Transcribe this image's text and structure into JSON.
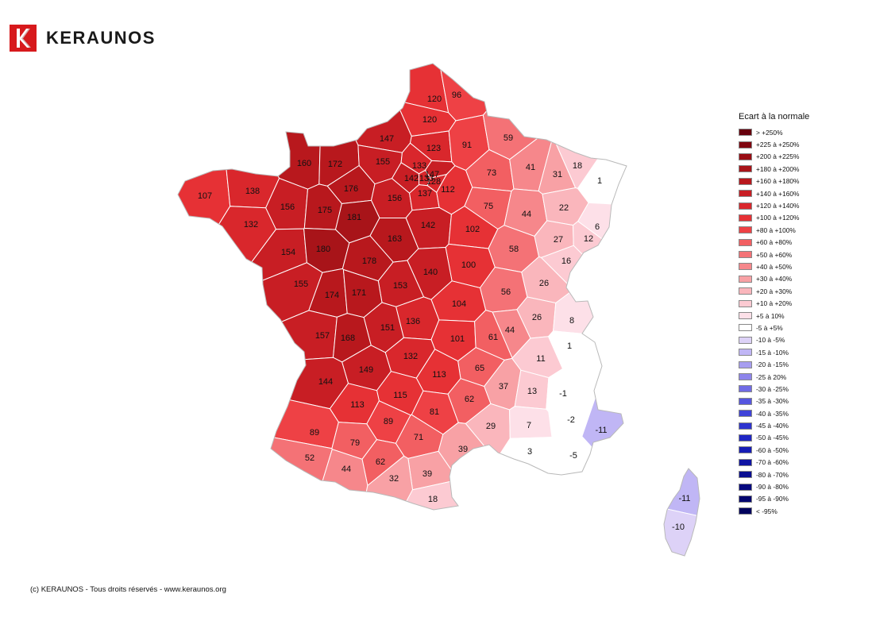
{
  "header": {
    "brand_name": "KERAUNOS",
    "logo_icon": "keraunos-logo-icon",
    "logo_color": "#d7191c"
  },
  "legend": {
    "title": "Ecart à la normale",
    "classes": [
      {
        "label": "> +250%",
        "color": "#67000d"
      },
      {
        "label": "+225 à +250%",
        "color": "#7f0610"
      },
      {
        "label": "+200 à +225%",
        "color": "#990d14"
      },
      {
        "label": "+180 à +200%",
        "color": "#a81419"
      },
      {
        "label": "+160 à +180%",
        "color": "#b8181d"
      },
      {
        "label": "+140 à +160%",
        "color": "#c81e24"
      },
      {
        "label": "+120 à +140%",
        "color": "#d9272c"
      },
      {
        "label": "+100 à +120%",
        "color": "#e63135"
      },
      {
        "label": "+80 à +100%",
        "color": "#ee4145"
      },
      {
        "label": "+60 à +80%",
        "color": "#f25f62"
      },
      {
        "label": "+50 à +60%",
        "color": "#f47276"
      },
      {
        "label": "+40 à +50%",
        "color": "#f6878b"
      },
      {
        "label": "+30 à +40%",
        "color": "#f8a1a5"
      },
      {
        "label": "+20 à +30%",
        "color": "#fab6bc"
      },
      {
        "label": "+10 à +20%",
        "color": "#fccad2"
      },
      {
        "label": "+5 à 10%",
        "color": "#fde0e8"
      },
      {
        "label": "-5 à +5%",
        "color": "#ffffff"
      },
      {
        "label": "-10 à -5%",
        "color": "#ddd2f7"
      },
      {
        "label": "-15 à -10%",
        "color": "#c0b6f5"
      },
      {
        "label": "-20 à -15%",
        "color": "#a79ef0"
      },
      {
        "label": "-25 à 20%",
        "color": "#8d84eb"
      },
      {
        "label": "-30 à -25%",
        "color": "#706be5"
      },
      {
        "label": "-35 à -30%",
        "color": "#5656df"
      },
      {
        "label": "-40 à -35%",
        "color": "#3f42d8"
      },
      {
        "label": "-45 à -40%",
        "color": "#2d33cf"
      },
      {
        "label": "-50 à -45%",
        "color": "#1f26c4"
      },
      {
        "label": "-60 à -50%",
        "color": "#161cb5"
      },
      {
        "label": "-70 à -60%",
        "color": "#0f14a3"
      },
      {
        "label": "-80 à -70%",
        "color": "#0a0e91"
      },
      {
        "label": "-90 à -80%",
        "color": "#06097f"
      },
      {
        "label": "-95 à -90%",
        "color": "#03056e"
      },
      {
        "label": "< -95%",
        "color": "#01035d"
      }
    ]
  },
  "departments": [
    {
      "value": "120",
      "class": "+100 à +120%"
    },
    {
      "value": "96",
      "class": "+80 à +100%"
    },
    {
      "value": "120",
      "class": "+100 à +120%"
    },
    {
      "value": "147",
      "class": "+140 à +160%"
    },
    {
      "value": "123",
      "class": "+120 à +140%"
    },
    {
      "value": "91",
      "class": "+80 à +100%"
    },
    {
      "value": "59",
      "class": "+50 à +60%"
    },
    {
      "value": "160",
      "class": "+160 à +180%"
    },
    {
      "value": "172",
      "class": "+160 à +180%"
    },
    {
      "value": "155",
      "class": "+140 à +160%"
    },
    {
      "value": "133",
      "class": "+120 à +140%"
    },
    {
      "value": "142",
      "class": "+140 à +160%"
    },
    {
      "value": "133",
      "class": "+120 à +140%"
    },
    {
      "value": "147",
      "class": "+140 à +160%"
    },
    {
      "value": "128",
      "class": "+120 à +140%"
    },
    {
      "value": "73",
      "class": "+60 à +80%"
    },
    {
      "value": "41",
      "class": "+40 à +50%"
    },
    {
      "value": "31",
      "class": "+30 à +40%"
    },
    {
      "value": "18",
      "class": "+10 à +20%"
    },
    {
      "value": "1",
      "class": "-5 à +5%"
    },
    {
      "value": "107",
      "class": "+100 à +120%"
    },
    {
      "value": "138",
      "class": "+120 à +140%"
    },
    {
      "value": "176",
      "class": "+160 à +180%"
    },
    {
      "value": "156",
      "class": "+140 à +160%"
    },
    {
      "value": "137",
      "class": "+120 à +140%"
    },
    {
      "value": "112",
      "class": "+100 à +120%"
    },
    {
      "value": "156",
      "class": "+140 à +160%"
    },
    {
      "value": "175",
      "class": "+160 à +180%"
    },
    {
      "value": "181",
      "class": "+180 à +200%"
    },
    {
      "value": "75",
      "class": "+60 à +80%"
    },
    {
      "value": "44",
      "class": "+40 à +50%"
    },
    {
      "value": "22",
      "class": "+20 à +30%"
    },
    {
      "value": "132",
      "class": "+120 à +140%"
    },
    {
      "value": "142",
      "class": "+140 à +160%"
    },
    {
      "value": "6",
      "class": "+5 à 10%"
    },
    {
      "value": "102",
      "class": "+100 à +120%"
    },
    {
      "value": "27",
      "class": "+20 à +30%"
    },
    {
      "value": "12",
      "class": "+10 à +20%"
    },
    {
      "value": "163",
      "class": "+160 à +180%"
    },
    {
      "value": "154",
      "class": "+140 à +160%"
    },
    {
      "value": "180",
      "class": "+180 à +200%"
    },
    {
      "value": "58",
      "class": "+50 à +60%"
    },
    {
      "value": "178",
      "class": "+160 à +180%"
    },
    {
      "value": "16",
      "class": "+10 à +20%"
    },
    {
      "value": "100",
      "class": "+100 à +120%"
    },
    {
      "value": "140",
      "class": "+140 à +160%"
    },
    {
      "value": "155",
      "class": "+140 à +160%"
    },
    {
      "value": "153",
      "class": "+140 à +160%"
    },
    {
      "value": "26",
      "class": "+20 à +30%"
    },
    {
      "value": "174",
      "class": "+160 à +180%"
    },
    {
      "value": "171",
      "class": "+160 à +180%"
    },
    {
      "value": "56",
      "class": "+50 à +60%"
    },
    {
      "value": "104",
      "class": "+100 à +120%"
    },
    {
      "value": "136",
      "class": "+120 à +140%"
    },
    {
      "value": "26",
      "class": "+20 à +30%"
    },
    {
      "value": "8",
      "class": "+5 à 10%"
    },
    {
      "value": "151",
      "class": "+140 à +160%"
    },
    {
      "value": "44",
      "class": "+40 à +50%"
    },
    {
      "value": "157",
      "class": "+140 à +160%"
    },
    {
      "value": "168",
      "class": "+160 à +180%"
    },
    {
      "value": "101",
      "class": "+100 à +120%"
    },
    {
      "value": "61",
      "class": "+60 à +80%"
    },
    {
      "value": "1",
      "class": "-5 à +5%"
    },
    {
      "value": "132",
      "class": "+120 à +140%"
    },
    {
      "value": "11",
      "class": "+10 à +20%"
    },
    {
      "value": "149",
      "class": "+140 à +160%"
    },
    {
      "value": "65",
      "class": "+60 à +80%"
    },
    {
      "value": "144",
      "class": "+140 à +160%"
    },
    {
      "value": "113",
      "class": "+100 à +120%"
    },
    {
      "value": "37",
      "class": "+30 à +40%"
    },
    {
      "value": "13",
      "class": "+10 à +20%"
    },
    {
      "value": "-1",
      "class": "-5 à +5%"
    },
    {
      "value": "115",
      "class": "+100 à +120%"
    },
    {
      "value": "113",
      "class": "+100 à +120%"
    },
    {
      "value": "62",
      "class": "+60 à +80%"
    },
    {
      "value": "81",
      "class": "+80 à +100%"
    },
    {
      "value": "-2",
      "class": "-5 à +5%"
    },
    {
      "value": "89",
      "class": "+80 à +100%"
    },
    {
      "value": "-11",
      "class": "-15 à -10%"
    },
    {
      "value": "89",
      "class": "+80 à +100%"
    },
    {
      "value": "29",
      "class": "+20 à +30%"
    },
    {
      "value": "7",
      "class": "+5 à 10%"
    },
    {
      "value": "71",
      "class": "+60 à +80%"
    },
    {
      "value": "79",
      "class": "+60 à +80%"
    },
    {
      "value": "39",
      "class": "+30 à +40%"
    },
    {
      "value": "3",
      "class": "-5 à +5%"
    },
    {
      "value": "-5",
      "class": "-5 à +5%"
    },
    {
      "value": "52",
      "class": "+50 à +60%"
    },
    {
      "value": "62",
      "class": "+60 à +80%"
    },
    {
      "value": "44",
      "class": "+40 à +50%"
    },
    {
      "value": "39",
      "class": "+30 à +40%"
    },
    {
      "value": "32",
      "class": "+30 à +40%"
    },
    {
      "value": "18",
      "class": "+10 à +20%"
    },
    {
      "value": "-11",
      "class": "-15 à -10%"
    },
    {
      "value": "-10",
      "class": "-10 à -5%"
    }
  ],
  "footer": {
    "copyright": "(c) KERAUNOS - Tous droits réservés - www.keraunos.org"
  }
}
